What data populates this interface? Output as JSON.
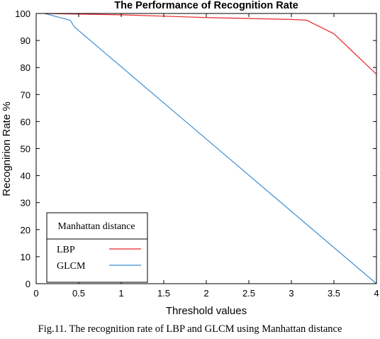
{
  "chart_data": {
    "type": "line",
    "title": "The Performance of Recognition Rate",
    "xlabel": "Threshold values",
    "ylabel": "Recognirion Rate %",
    "xlim": [
      0,
      4
    ],
    "ylim": [
      0,
      100
    ],
    "xticks": [
      0,
      0.5,
      1,
      1.5,
      2,
      2.5,
      3,
      3.5,
      4
    ],
    "xtick_labels": [
      "0",
      "0.5",
      "1",
      "1.5",
      "2",
      "2.5",
      "3",
      "3.5",
      "4"
    ],
    "yticks": [
      0,
      10,
      20,
      30,
      40,
      50,
      60,
      70,
      80,
      90,
      100
    ],
    "ytick_labels": [
      "0",
      "10",
      "20",
      "30",
      "40",
      "50",
      "60",
      "70",
      "80",
      "90",
      "100"
    ],
    "grid": false,
    "legend": {
      "placement": "bottom-left",
      "title": "Manhattan distance"
    },
    "series": [
      {
        "name": "LBP",
        "color": "#e8262b",
        "x": [
          0.1,
          1.0,
          2.0,
          3.0,
          3.18,
          3.5,
          4.0
        ],
        "y": [
          100,
          99.5,
          98.5,
          97.8,
          97.5,
          92.5,
          77.5
        ]
      },
      {
        "name": "GLCM",
        "color": "#3b8ed4",
        "x": [
          0.1,
          0.4,
          0.45,
          4.0
        ],
        "y": [
          100,
          97.5,
          95,
          0
        ]
      }
    ]
  },
  "caption": "Fig.11. The recognition rate of LBP and GLCM using Manhattan distance"
}
